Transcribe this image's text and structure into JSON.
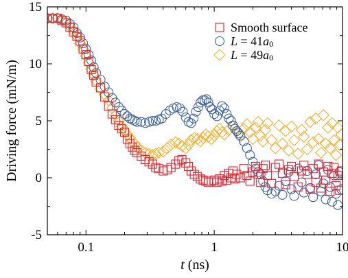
{
  "chart_data": {
    "type": "scatter",
    "x_scale": "log",
    "xlim": [
      0.05,
      10
    ],
    "ylim": [
      -5,
      15
    ],
    "x_ticks": [
      {
        "value": 0.1,
        "label": "0.1"
      },
      {
        "value": 1,
        "label": "1"
      },
      {
        "value": 10,
        "label": "10"
      }
    ],
    "y_ticks": [
      {
        "value": -5,
        "label": "-5"
      },
      {
        "value": 0,
        "label": "0"
      },
      {
        "value": 5,
        "label": "5"
      },
      {
        "value": 10,
        "label": "10"
      },
      {
        "value": 15,
        "label": "15"
      }
    ],
    "xlabel": {
      "italic": "t",
      "rest": " (ns)"
    },
    "ylabel": "Driving force (mN/m)",
    "legend_position": "top-right",
    "grid": false,
    "series": [
      {
        "name": "Smooth surface",
        "legend_parts": [
          {
            "text": "Smooth surface",
            "italic": false
          }
        ],
        "marker": "square",
        "color": "#e8202a",
        "points": [
          [
            0.05,
            14.0
          ],
          [
            0.055,
            14.0
          ],
          [
            0.06,
            14.0
          ],
          [
            0.065,
            13.8
          ],
          [
            0.07,
            13.6
          ],
          [
            0.075,
            13.2
          ],
          [
            0.08,
            12.8
          ],
          [
            0.085,
            12.4
          ],
          [
            0.09,
            12.0
          ],
          [
            0.095,
            11.3
          ],
          [
            0.1,
            10.8
          ],
          [
            0.105,
            10.2
          ],
          [
            0.11,
            9.5
          ],
          [
            0.115,
            9.0
          ],
          [
            0.12,
            8.4
          ],
          [
            0.13,
            7.9
          ],
          [
            0.14,
            7.1
          ],
          [
            0.15,
            6.3
          ],
          [
            0.16,
            5.6
          ],
          [
            0.17,
            5.1
          ],
          [
            0.18,
            4.6
          ],
          [
            0.19,
            4.3
          ],
          [
            0.2,
            4.0
          ],
          [
            0.21,
            3.4
          ],
          [
            0.22,
            3.0
          ],
          [
            0.23,
            2.7
          ],
          [
            0.24,
            2.4
          ],
          [
            0.25,
            2.2
          ],
          [
            0.27,
            1.9
          ],
          [
            0.29,
            1.6
          ],
          [
            0.31,
            1.4
          ],
          [
            0.33,
            1.2
          ],
          [
            0.35,
            0.9
          ],
          [
            0.37,
            0.8
          ],
          [
            0.4,
            0.6
          ],
          [
            0.43,
            0.7
          ],
          [
            0.46,
            0.9
          ],
          [
            0.5,
            1.2
          ],
          [
            0.53,
            1.5
          ],
          [
            0.56,
            1.6
          ],
          [
            0.6,
            1.3
          ],
          [
            0.63,
            1.0
          ],
          [
            0.66,
            0.6
          ],
          [
            0.7,
            0.3
          ],
          [
            0.74,
            0.1
          ],
          [
            0.78,
            -0.1
          ],
          [
            0.82,
            -0.2
          ],
          [
            0.86,
            -0.3
          ],
          [
            0.9,
            -0.4
          ],
          [
            0.95,
            -0.3
          ],
          [
            1.0,
            -0.2
          ],
          [
            1.05,
            -0.4
          ],
          [
            1.1,
            -0.1
          ],
          [
            1.15,
            -0.3
          ],
          [
            1.2,
            0.2
          ],
          [
            1.25,
            -0.2
          ],
          [
            1.3,
            0.4
          ],
          [
            1.35,
            0.0
          ],
          [
            1.4,
            0.6
          ],
          [
            1.45,
            -0.1
          ],
          [
            1.5,
            0.3
          ],
          [
            1.6,
            0.0
          ],
          [
            1.7,
            0.8
          ],
          [
            1.8,
            0.2
          ],
          [
            1.9,
            -0.3
          ],
          [
            2.0,
            0.5
          ],
          [
            2.1,
            1.0
          ],
          [
            2.2,
            0.3
          ],
          [
            2.3,
            -0.4
          ],
          [
            2.4,
            0.8
          ],
          [
            2.5,
            1.1
          ],
          [
            2.6,
            0.2
          ],
          [
            2.8,
            -0.5
          ],
          [
            3.0,
            0.9
          ],
          [
            3.2,
            1.2
          ],
          [
            3.4,
            0.4
          ],
          [
            3.6,
            -0.6
          ],
          [
            3.8,
            0.7
          ],
          [
            4.0,
            1.0
          ],
          [
            4.2,
            0.1
          ],
          [
            4.5,
            -0.8
          ],
          [
            4.8,
            0.6
          ],
          [
            5.0,
            1.1
          ],
          [
            5.3,
            0.3
          ],
          [
            5.6,
            -1.0
          ],
          [
            5.9,
            0.8
          ],
          [
            6.2,
            -0.4
          ],
          [
            6.5,
            1.2
          ],
          [
            6.8,
            -0.9
          ],
          [
            7.1,
            0.5
          ],
          [
            7.4,
            -0.2
          ],
          [
            7.7,
            1.0
          ],
          [
            8.0,
            -1.2
          ],
          [
            8.3,
            0.4
          ],
          [
            8.6,
            0.9
          ],
          [
            8.9,
            -0.7
          ],
          [
            9.2,
            0.2
          ],
          [
            9.5,
            -1.1
          ],
          [
            9.8,
            0.6
          ]
        ]
      },
      {
        "name": "L = 41a0",
        "legend_parts": [
          {
            "text": "L",
            "italic": true
          },
          {
            "text": " = 41",
            "italic": false
          },
          {
            "text": "a",
            "italic": true
          },
          {
            "text": "0",
            "italic": false,
            "sub": true
          }
        ],
        "marker": "circle",
        "color": "#3d64a0",
        "points": [
          [
            0.05,
            14.0
          ],
          [
            0.055,
            14.0
          ],
          [
            0.06,
            14.0
          ],
          [
            0.065,
            13.9
          ],
          [
            0.07,
            13.8
          ],
          [
            0.075,
            13.5
          ],
          [
            0.08,
            13.2
          ],
          [
            0.085,
            12.7
          ],
          [
            0.09,
            12.3
          ],
          [
            0.095,
            11.8
          ],
          [
            0.1,
            11.3
          ],
          [
            0.105,
            10.8
          ],
          [
            0.11,
            10.3
          ],
          [
            0.115,
            9.7
          ],
          [
            0.12,
            9.2
          ],
          [
            0.13,
            8.6
          ],
          [
            0.14,
            8.0
          ],
          [
            0.15,
            7.5
          ],
          [
            0.16,
            7.0
          ],
          [
            0.17,
            6.6
          ],
          [
            0.18,
            6.2
          ],
          [
            0.19,
            5.9
          ],
          [
            0.2,
            5.6
          ],
          [
            0.21,
            5.4
          ],
          [
            0.22,
            5.2
          ],
          [
            0.23,
            5.1
          ],
          [
            0.24,
            5.0
          ],
          [
            0.25,
            4.9
          ],
          [
            0.27,
            4.9
          ],
          [
            0.29,
            4.8
          ],
          [
            0.31,
            4.9
          ],
          [
            0.33,
            5.0
          ],
          [
            0.35,
            5.0
          ],
          [
            0.37,
            5.1
          ],
          [
            0.39,
            5.2
          ],
          [
            0.42,
            5.6
          ],
          [
            0.45,
            5.9
          ],
          [
            0.48,
            6.1
          ],
          [
            0.51,
            6.2
          ],
          [
            0.54,
            6.1
          ],
          [
            0.57,
            5.8
          ],
          [
            0.6,
            5.3
          ],
          [
            0.63,
            4.9
          ],
          [
            0.66,
            4.8
          ],
          [
            0.69,
            5.2
          ],
          [
            0.72,
            5.8
          ],
          [
            0.75,
            6.2
          ],
          [
            0.78,
            6.6
          ],
          [
            0.81,
            6.8
          ],
          [
            0.84,
            6.8
          ],
          [
            0.87,
            6.9
          ],
          [
            0.9,
            6.6
          ],
          [
            0.93,
            6.2
          ],
          [
            0.96,
            6.0
          ],
          [
            1.0,
            5.6
          ],
          [
            1.05,
            5.4
          ],
          [
            1.1,
            5.9
          ],
          [
            1.15,
            6.3
          ],
          [
            1.2,
            6.1
          ],
          [
            1.25,
            5.6
          ],
          [
            1.3,
            5.2
          ],
          [
            1.35,
            5.0
          ],
          [
            1.4,
            4.6
          ],
          [
            1.45,
            4.3
          ],
          [
            1.5,
            4.1
          ],
          [
            1.55,
            3.9
          ],
          [
            1.6,
            3.7
          ],
          [
            1.7,
            3.2
          ],
          [
            1.8,
            2.6
          ],
          [
            1.9,
            2.0
          ],
          [
            2.0,
            1.4
          ],
          [
            2.1,
            0.8
          ],
          [
            2.2,
            0.5
          ],
          [
            2.3,
            0.3
          ],
          [
            2.4,
            -0.3
          ],
          [
            2.5,
            -0.8
          ],
          [
            2.6,
            -1.1
          ],
          [
            2.8,
            -1.4
          ],
          [
            3.0,
            -1.2
          ],
          [
            3.2,
            -0.7
          ],
          [
            3.4,
            -1.5
          ],
          [
            3.6,
            -0.3
          ],
          [
            3.8,
            0.5
          ],
          [
            4.0,
            -1.0
          ],
          [
            4.2,
            -1.6
          ],
          [
            4.5,
            0.8
          ],
          [
            4.8,
            -0.4
          ],
          [
            5.0,
            -1.3
          ],
          [
            5.3,
            0.6
          ],
          [
            5.6,
            -0.9
          ],
          [
            5.9,
            -1.7
          ],
          [
            6.2,
            0.3
          ],
          [
            6.5,
            1.1
          ],
          [
            6.8,
            -1.2
          ],
          [
            7.1,
            -0.5
          ],
          [
            7.4,
            -1.9
          ],
          [
            7.7,
            0.7
          ],
          [
            8.0,
            -0.8
          ],
          [
            8.3,
            -2.1
          ],
          [
            8.6,
            0.2
          ],
          [
            8.9,
            -1.4
          ],
          [
            9.2,
            -2.4
          ],
          [
            9.5,
            0.5
          ],
          [
            9.8,
            -1.0
          ]
        ]
      },
      {
        "name": "L = 49a0",
        "legend_parts": [
          {
            "text": "L",
            "italic": true
          },
          {
            "text": " = 49",
            "italic": false
          },
          {
            "text": "a",
            "italic": true
          },
          {
            "text": "0",
            "italic": false,
            "sub": true
          }
        ],
        "marker": "diamond",
        "color": "#f6b12b",
        "points": [
          [
            0.05,
            14.0
          ],
          [
            0.055,
            14.0
          ],
          [
            0.06,
            14.0
          ],
          [
            0.065,
            13.8
          ],
          [
            0.07,
            13.6
          ],
          [
            0.075,
            13.3
          ],
          [
            0.08,
            12.9
          ],
          [
            0.085,
            12.4
          ],
          [
            0.09,
            11.8
          ],
          [
            0.095,
            11.3
          ],
          [
            0.1,
            10.7
          ],
          [
            0.105,
            10.1
          ],
          [
            0.11,
            9.5
          ],
          [
            0.115,
            9.0
          ],
          [
            0.12,
            8.5
          ],
          [
            0.13,
            7.8
          ],
          [
            0.14,
            7.3
          ],
          [
            0.15,
            6.8
          ],
          [
            0.16,
            6.1
          ],
          [
            0.17,
            5.5
          ],
          [
            0.18,
            5.0
          ],
          [
            0.19,
            4.5
          ],
          [
            0.2,
            4.1
          ],
          [
            0.21,
            3.8
          ],
          [
            0.22,
            3.5
          ],
          [
            0.23,
            3.2
          ],
          [
            0.24,
            3.0
          ],
          [
            0.25,
            2.7
          ],
          [
            0.27,
            2.4
          ],
          [
            0.29,
            2.2
          ],
          [
            0.31,
            2.1
          ],
          [
            0.33,
            2.0
          ],
          [
            0.35,
            2.1
          ],
          [
            0.37,
            2.2
          ],
          [
            0.4,
            2.3
          ],
          [
            0.43,
            2.6
          ],
          [
            0.46,
            2.9
          ],
          [
            0.5,
            3.1
          ],
          [
            0.53,
            3.0
          ],
          [
            0.56,
            2.8
          ],
          [
            0.6,
            2.6
          ],
          [
            0.63,
            2.9
          ],
          [
            0.66,
            3.3
          ],
          [
            0.7,
            3.5
          ],
          [
            0.74,
            3.4
          ],
          [
            0.78,
            3.2
          ],
          [
            0.82,
            3.5
          ],
          [
            0.86,
            3.8
          ],
          [
            0.9,
            3.6
          ],
          [
            0.95,
            3.4
          ],
          [
            1.0,
            3.7
          ],
          [
            1.05,
            4.1
          ],
          [
            1.1,
            4.3
          ],
          [
            1.15,
            4.0
          ],
          [
            1.2,
            3.8
          ],
          [
            1.3,
            4.2
          ],
          [
            1.4,
            4.5
          ],
          [
            1.5,
            4.1
          ],
          [
            1.6,
            3.6
          ],
          [
            1.7,
            4.3
          ],
          [
            1.8,
            4.7
          ],
          [
            1.9,
            4.0
          ],
          [
            2.0,
            3.4
          ],
          [
            2.1,
            4.4
          ],
          [
            2.2,
            4.9
          ],
          [
            2.3,
            3.7
          ],
          [
            2.4,
            3.2
          ],
          [
            2.5,
            4.2
          ],
          [
            2.6,
            4.8
          ],
          [
            2.8,
            3.3
          ],
          [
            3.0,
            2.6
          ],
          [
            3.2,
            4.6
          ],
          [
            3.4,
            3.0
          ],
          [
            3.6,
            4.1
          ],
          [
            3.8,
            2.4
          ],
          [
            4.0,
            4.5
          ],
          [
            4.2,
            3.3
          ],
          [
            4.5,
            2.1
          ],
          [
            4.8,
            4.2
          ],
          [
            5.0,
            3.6
          ],
          [
            5.3,
            2.5
          ],
          [
            5.6,
            4.9
          ],
          [
            5.9,
            3.1
          ],
          [
            6.2,
            5.2
          ],
          [
            6.5,
            3.4
          ],
          [
            6.8,
            2.2
          ],
          [
            7.1,
            5.5
          ],
          [
            7.4,
            3.0
          ],
          [
            7.7,
            4.4
          ],
          [
            8.0,
            2.6
          ],
          [
            8.3,
            4.8
          ],
          [
            8.6,
            3.3
          ],
          [
            8.9,
            2.0
          ],
          [
            9.2,
            4.4
          ],
          [
            9.5,
            2.9
          ],
          [
            9.8,
            3.8
          ]
        ]
      }
    ]
  }
}
